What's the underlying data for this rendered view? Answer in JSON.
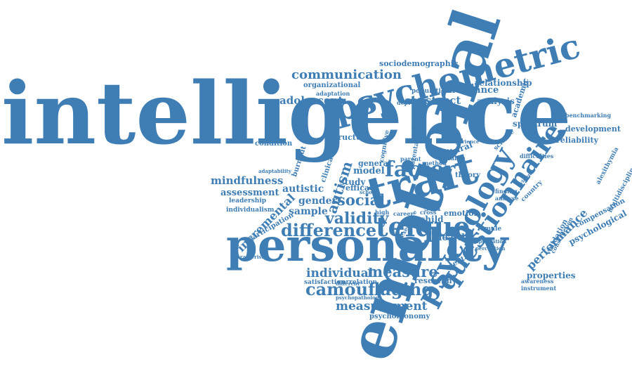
{
  "accent_color": "#3f7eb5",
  "words": [
    "intelligence",
    "emotional",
    "personality",
    "trait",
    "psychometric",
    "psychology",
    "questionnaire",
    "teique",
    "factor",
    "difference",
    "camouflaging",
    "communication",
    "measure",
    "validity",
    "social",
    "measurement",
    "construct",
    "adolescent",
    "individual",
    "mindfulness",
    "performance",
    "autism",
    "incremental",
    "sociodemographic",
    "invariance",
    "relationship",
    "analysis",
    "assessment",
    "autistic",
    "gender",
    "sample",
    "health",
    "psychological",
    "properties",
    "research",
    "development",
    "reliability",
    "structure",
    "model",
    "study",
    "efficacy",
    "general",
    "child",
    "self",
    "emotion",
    "psychobionomy",
    "academic",
    "spectrum",
    "organizational",
    "adaptation",
    "population",
    "depression",
    "cultural",
    "variable",
    "compensation",
    "multidisciplinary",
    "validation",
    "construction",
    "country",
    "condition",
    "burnout",
    "leadership",
    "participation",
    "individualism",
    "satisfaction",
    "correlation",
    "adaptability",
    "clinical",
    "cognitive",
    "parental",
    "female",
    "mental",
    "awareness",
    "instrument",
    "characteristic",
    "alexithymia",
    "benchmarking",
    "difficulties",
    "theory",
    "science",
    "evidence",
    "finding",
    "analyse",
    "career",
    "cross",
    "high",
    "different",
    "school",
    "executive",
    "psychopathology",
    "method",
    "parent",
    "short",
    "form",
    "disorder",
    "experience",
    "application",
    "perception",
    "mental"
  ]
}
